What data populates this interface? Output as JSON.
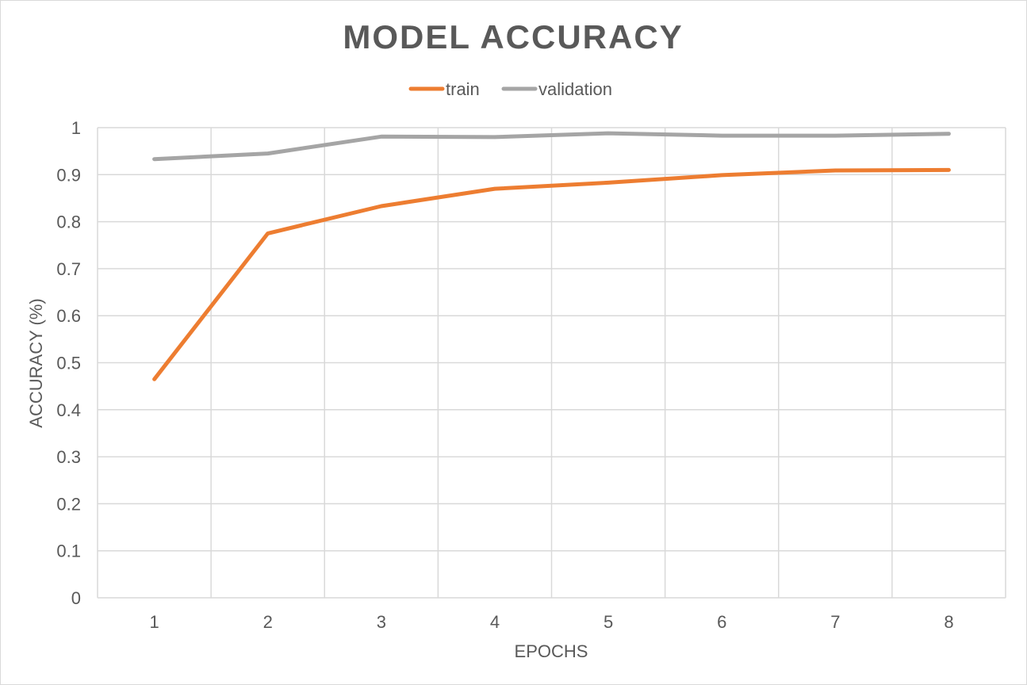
{
  "chart_data": {
    "type": "line",
    "title": "MODEL ACCURACY",
    "xlabel": "EPOCHS",
    "ylabel": "ACCURACY (%)",
    "categories": [
      "1",
      "2",
      "3",
      "4",
      "5",
      "6",
      "7",
      "8"
    ],
    "ylim": [
      0,
      1
    ],
    "yticks": [
      "0",
      "0.1",
      "0.2",
      "0.3",
      "0.4",
      "0.5",
      "0.6",
      "0.7",
      "0.8",
      "0.9",
      "1"
    ],
    "grid": true,
    "legend_position": "top",
    "series": [
      {
        "name": "train",
        "color": "#ED7D31",
        "values": [
          0.465,
          0.775,
          0.833,
          0.87,
          0.883,
          0.899,
          0.909,
          0.91
        ]
      },
      {
        "name": "validation",
        "color": "#A5A5A5",
        "values": [
          0.933,
          0.945,
          0.981,
          0.98,
          0.988,
          0.983,
          0.983,
          0.987
        ]
      }
    ]
  }
}
